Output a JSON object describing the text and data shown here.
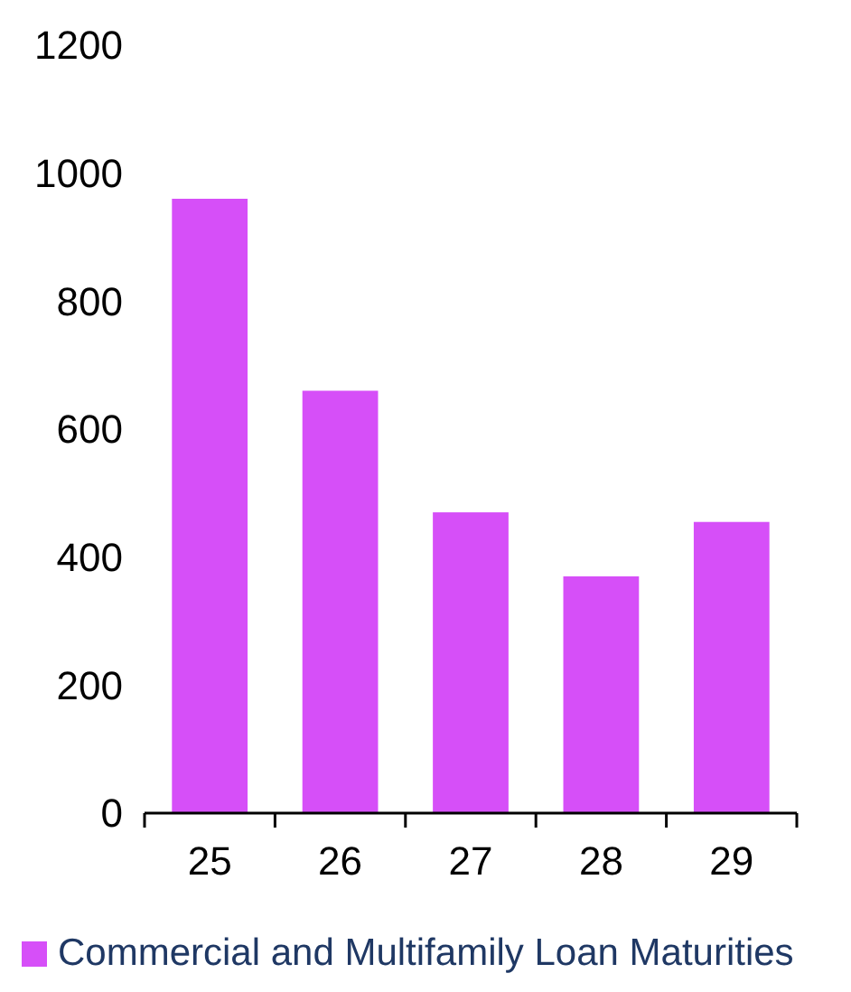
{
  "chart_data": {
    "type": "bar",
    "categories": [
      "25",
      "26",
      "27",
      "28",
      "29"
    ],
    "series": [
      {
        "name": "Commercial and Multifamily Loan Maturities",
        "color": "#d64ff8",
        "values": [
          960,
          660,
          470,
          370,
          455
        ]
      }
    ],
    "ylim": [
      0,
      1200
    ],
    "yticks": [
      0,
      200,
      400,
      600,
      800,
      1000,
      1200
    ],
    "grid": false,
    "legend": "bottom left"
  }
}
